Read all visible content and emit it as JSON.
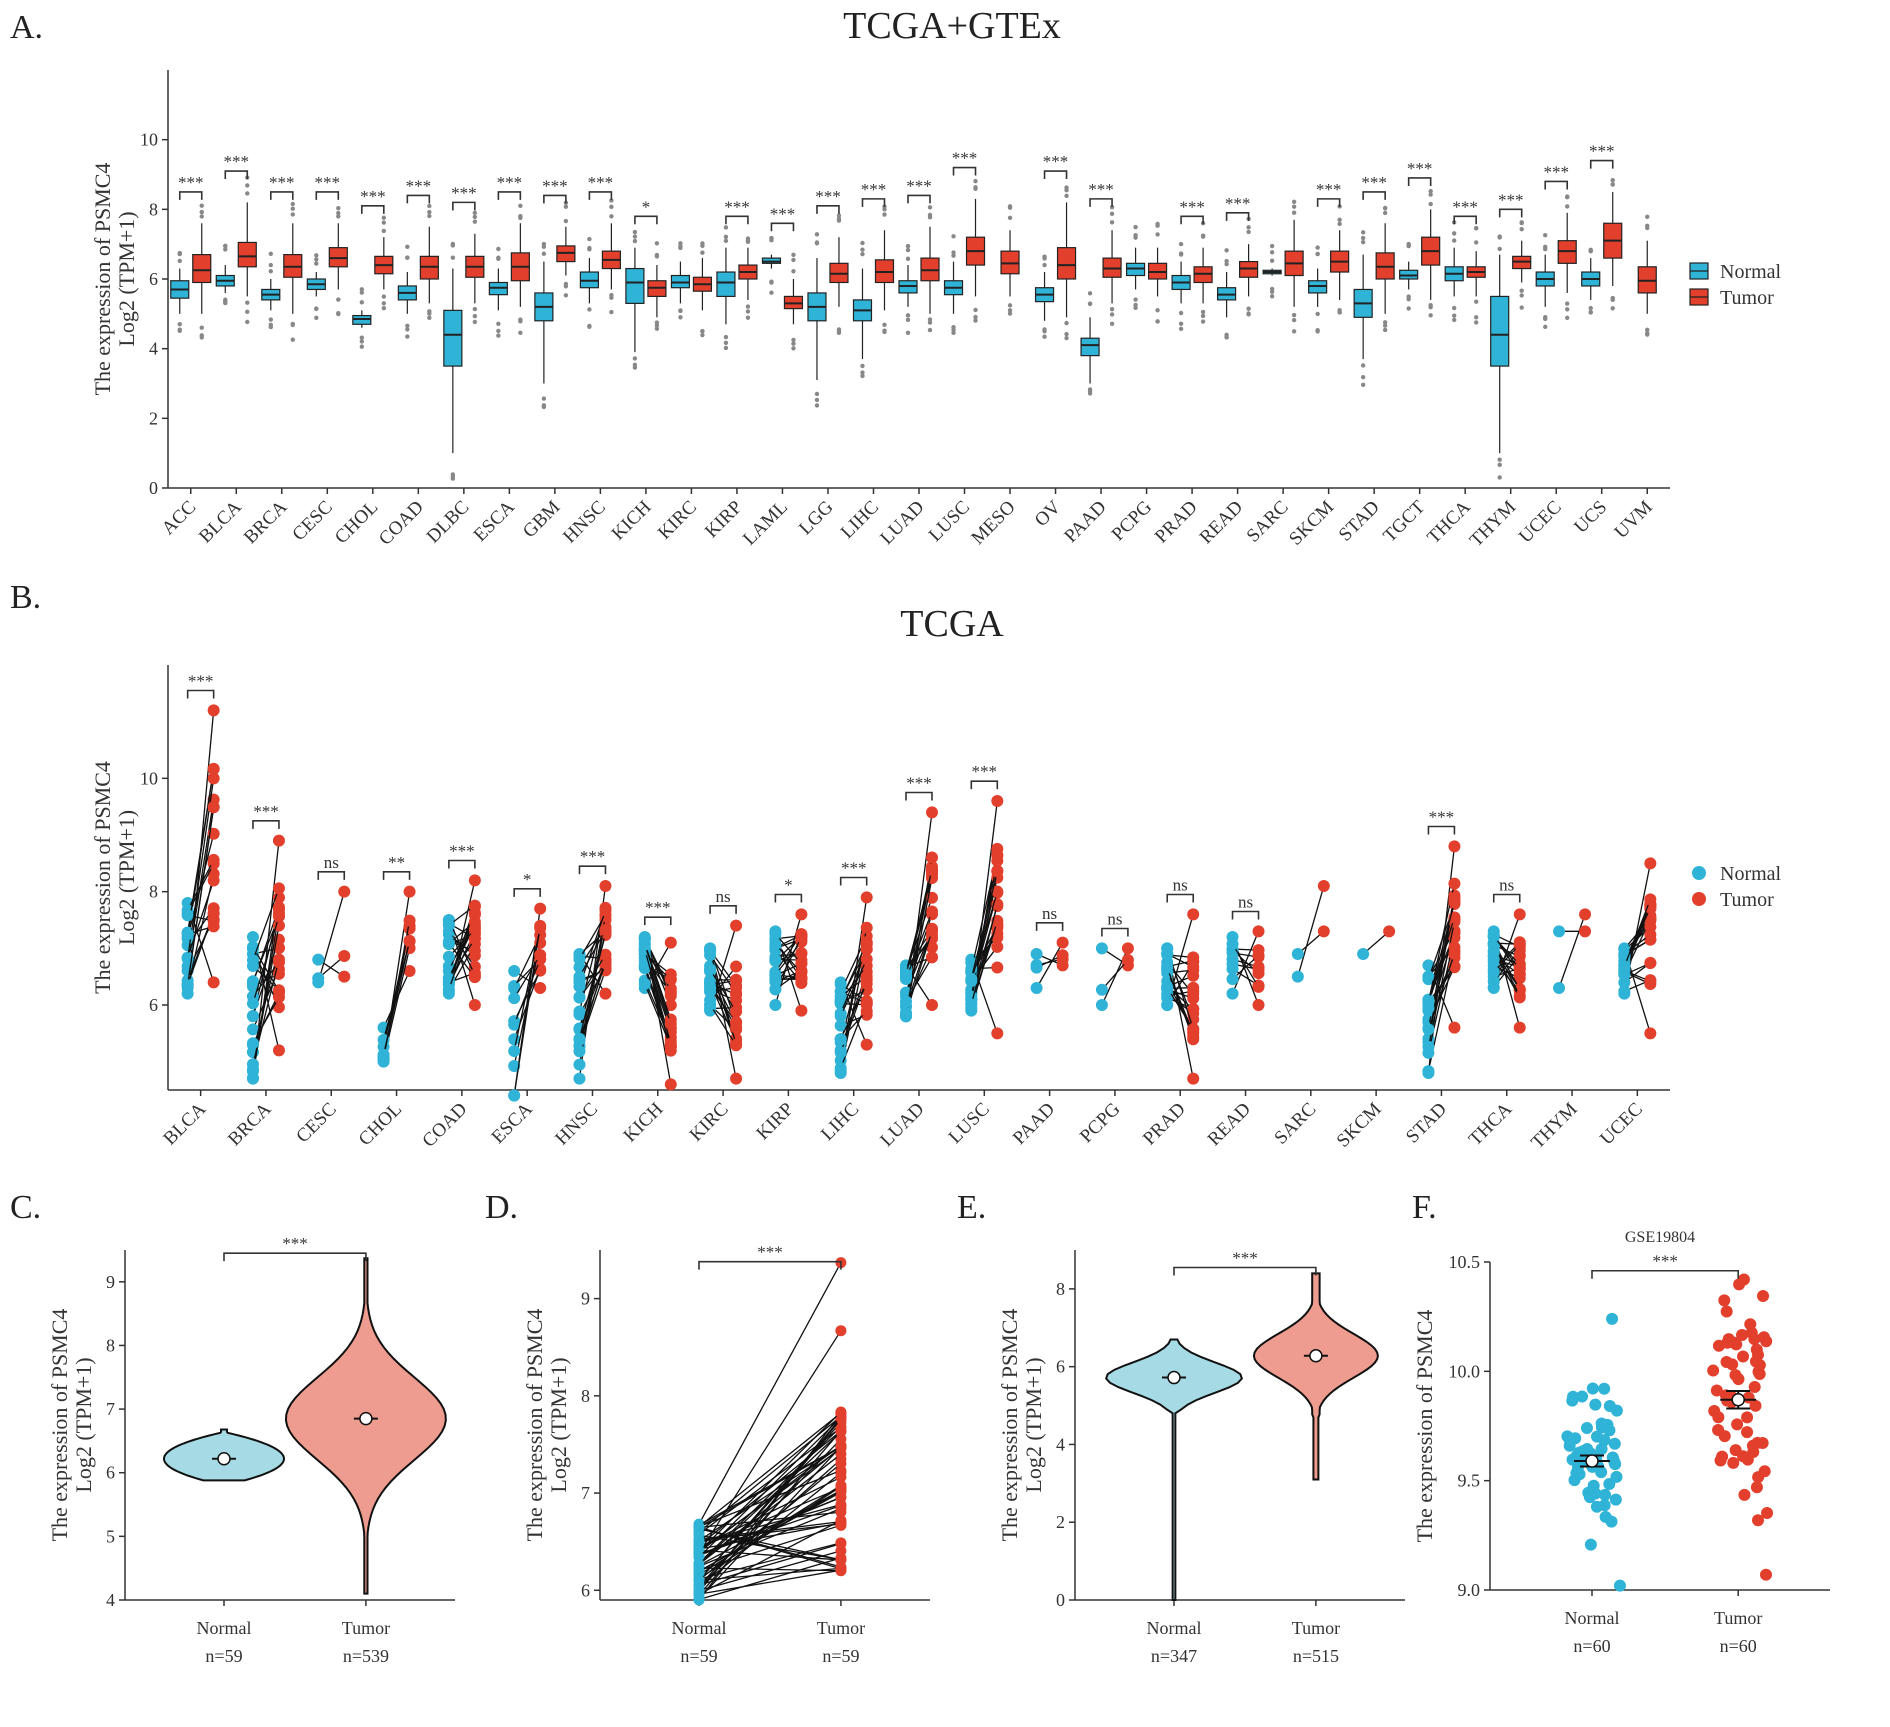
{
  "colors": {
    "normal": "#2fb3d6",
    "tumor": "#e2402c",
    "normal_violin": "#a6dbe6",
    "tumor_violin": "#ef9c90"
  },
  "legend": {
    "normal": "Normal",
    "tumor": "Tumor"
  },
  "chart_data": [
    {
      "panel": "A.",
      "type": "box",
      "title": "TCGA+GTEx",
      "ylabel_line1": "The expression  of PSMC4",
      "ylabel_line2": "Log2 (TPM+1)",
      "ylim": [
        0,
        12
      ],
      "yticks": [
        0,
        2,
        4,
        6,
        8,
        10
      ],
      "legend_position": "right",
      "categories": [
        "ACC",
        "BLCA",
        "BRCA",
        "CESC",
        "CHOL",
        "COAD",
        "DLBC",
        "ESCA",
        "GBM",
        "HNSC",
        "KICH",
        "KIRC",
        "KIRP",
        "LAML",
        "LGG",
        "LIHC",
        "LUAD",
        "LUSC",
        "MESO",
        "OV",
        "PAAD",
        "PCPG",
        "PRAD",
        "READ",
        "SARC",
        "SKCM",
        "STAD",
        "TGCT",
        "THCA",
        "THYM",
        "UCEC",
        "UCS",
        "UVM"
      ],
      "significance": [
        "***",
        "***",
        "***",
        "***",
        "***",
        "***",
        "***",
        "***",
        "***",
        "***",
        "*",
        "",
        "***",
        "***",
        "***",
        "***",
        "***",
        "***",
        "",
        "***",
        "***",
        "",
        "***",
        "***",
        "",
        "***",
        "***",
        "***",
        "***",
        "***",
        "***",
        "***",
        ""
      ],
      "normal_box": [
        [
          5.45,
          5.7,
          5.95,
          5.0,
          6.3
        ],
        [
          5.8,
          5.95,
          6.1,
          5.6,
          6.4
        ],
        [
          5.4,
          5.55,
          5.7,
          5.1,
          6.0
        ],
        [
          5.7,
          5.85,
          6.0,
          5.5,
          6.2
        ],
        [
          4.7,
          4.85,
          4.95,
          4.6,
          5.1
        ],
        [
          5.4,
          5.6,
          5.8,
          5.0,
          6.2
        ],
        [
          3.5,
          4.4,
          5.1,
          1.0,
          6.3
        ],
        [
          5.55,
          5.75,
          5.9,
          5.1,
          6.3
        ],
        [
          4.8,
          5.2,
          5.6,
          3.0,
          6.5
        ],
        [
          5.75,
          5.95,
          6.2,
          5.3,
          6.6
        ],
        [
          5.3,
          5.9,
          6.3,
          3.9,
          6.9
        ],
        [
          5.75,
          5.9,
          6.1,
          5.3,
          6.5
        ],
        [
          5.5,
          5.9,
          6.2,
          4.7,
          6.9
        ],
        [
          6.45,
          6.5,
          6.6,
          6.3,
          6.7
        ],
        [
          4.8,
          5.2,
          5.6,
          3.1,
          6.6
        ],
        [
          4.8,
          5.1,
          5.4,
          3.7,
          6.3
        ],
        [
          5.6,
          5.8,
          5.95,
          5.2,
          6.4
        ],
        [
          5.55,
          5.75,
          5.95,
          5.0,
          6.5
        ],
        null,
        [
          5.35,
          5.55,
          5.75,
          4.8,
          6.2
        ],
        [
          3.8,
          4.1,
          4.3,
          3.0,
          4.9
        ],
        [
          6.1,
          6.3,
          6.45,
          5.7,
          6.9
        ],
        [
          5.7,
          5.9,
          6.1,
          5.3,
          6.5
        ],
        [
          5.4,
          5.55,
          5.75,
          4.9,
          6.2
        ],
        [
          6.15,
          6.2,
          6.25,
          6.1,
          6.3
        ],
        [
          5.6,
          5.8,
          5.95,
          5.2,
          6.3
        ],
        [
          4.9,
          5.3,
          5.7,
          3.7,
          6.7
        ],
        [
          6.0,
          6.1,
          6.25,
          5.7,
          6.5
        ],
        [
          5.95,
          6.15,
          6.35,
          5.5,
          6.9
        ],
        [
          3.5,
          4.4,
          5.5,
          1.0,
          6.7
        ],
        [
          5.8,
          6.0,
          6.2,
          5.2,
          6.7
        ],
        [
          5.8,
          6.0,
          6.2,
          5.4,
          6.6
        ],
        null
      ],
      "tumor_box": [
        [
          5.9,
          6.25,
          6.7,
          5.0,
          7.6
        ],
        [
          6.35,
          6.65,
          7.05,
          5.5,
          8.2
        ],
        [
          6.05,
          6.35,
          6.7,
          5.0,
          7.6
        ],
        [
          6.35,
          6.6,
          6.9,
          5.7,
          7.6
        ],
        [
          6.15,
          6.4,
          6.65,
          5.7,
          7.2
        ],
        [
          6.0,
          6.35,
          6.65,
          5.3,
          7.5
        ],
        [
          6.05,
          6.35,
          6.65,
          5.3,
          7.3
        ],
        [
          5.95,
          6.35,
          6.75,
          5.2,
          7.6
        ],
        [
          6.5,
          6.75,
          6.95,
          6.1,
          7.5
        ],
        [
          6.3,
          6.55,
          6.8,
          5.7,
          7.6
        ],
        [
          5.5,
          5.75,
          5.95,
          4.9,
          6.4
        ],
        [
          5.65,
          5.85,
          6.05,
          5.1,
          6.6
        ],
        [
          6.0,
          6.2,
          6.4,
          5.4,
          6.9
        ],
        [
          5.15,
          5.3,
          5.5,
          4.7,
          6.0
        ],
        [
          5.9,
          6.15,
          6.45,
          5.2,
          7.2
        ],
        [
          5.9,
          6.2,
          6.55,
          5.1,
          7.4
        ],
        [
          5.95,
          6.25,
          6.6,
          5.0,
          7.5
        ],
        [
          6.4,
          6.8,
          7.2,
          5.5,
          8.3
        ],
        [
          6.15,
          6.45,
          6.8,
          5.5,
          7.4
        ],
        [
          6.0,
          6.4,
          6.9,
          4.9,
          8.2
        ],
        [
          6.05,
          6.3,
          6.6,
          5.3,
          7.4
        ],
        [
          6.0,
          6.2,
          6.45,
          5.5,
          6.9
        ],
        [
          5.9,
          6.15,
          6.35,
          5.3,
          6.9
        ],
        [
          6.05,
          6.3,
          6.5,
          5.5,
          7.0
        ],
        [
          6.1,
          6.45,
          6.8,
          5.2,
          7.7
        ],
        [
          6.2,
          6.5,
          6.8,
          5.4,
          7.4
        ],
        [
          6.0,
          6.35,
          6.75,
          5.0,
          7.6
        ],
        [
          6.4,
          6.8,
          7.2,
          5.4,
          8.0
        ],
        [
          6.05,
          6.2,
          6.35,
          5.5,
          6.8
        ],
        [
          6.3,
          6.5,
          6.65,
          5.9,
          7.1
        ],
        [
          6.45,
          6.8,
          7.1,
          5.6,
          7.9
        ],
        [
          6.6,
          7.1,
          7.6,
          5.8,
          8.5
        ],
        [
          5.6,
          5.95,
          6.35,
          5.0,
          7.1
        ]
      ]
    },
    {
      "panel": "B.",
      "type": "paired-dot",
      "title": "TCGA",
      "ylabel_line1": "The expression  of PSMC4",
      "ylabel_line2": "Log2 (TPM+1)",
      "ylim": [
        4.5,
        12
      ],
      "yticks": [
        6,
        8,
        10
      ],
      "legend_position": "right",
      "categories": [
        "BLCA",
        "BRCA",
        "CESC",
        "CHOL",
        "COAD",
        "ESCA",
        "HNSC",
        "KICH",
        "KIRC",
        "KIRP",
        "LIHC",
        "LUAD",
        "LUSC",
        "PAAD",
        "PCPG",
        "PRAD",
        "READ",
        "SARC",
        "SKCM",
        "STAD",
        "THCA",
        "THYM",
        "UCEC"
      ],
      "significance": [
        "***",
        "***",
        "ns",
        "**",
        "***",
        "*",
        "***",
        "***",
        "ns",
        "*",
        "***",
        "***",
        "***",
        "ns",
        "ns",
        "ns",
        "ns",
        "",
        "",
        "***",
        "ns",
        "",
        ""
      ],
      "normal_range": [
        [
          6.2,
          7.8
        ],
        [
          4.7,
          7.2
        ],
        [
          6.4,
          6.8
        ],
        [
          5.0,
          5.6
        ],
        [
          6.2,
          7.5
        ],
        [
          4.4,
          6.6
        ],
        [
          4.7,
          6.9
        ],
        [
          6.3,
          7.2
        ],
        [
          5.9,
          7.0
        ],
        [
          6.0,
          7.3
        ],
        [
          4.8,
          6.4
        ],
        [
          5.8,
          6.7
        ],
        [
          5.9,
          6.8
        ],
        [
          6.3,
          6.9
        ],
        [
          6.0,
          7.0
        ],
        [
          6.0,
          7.0
        ],
        [
          6.2,
          7.2
        ],
        [
          6.5,
          6.9
        ],
        [
          6.9,
          6.9
        ],
        [
          4.8,
          6.7
        ],
        [
          6.3,
          7.3
        ],
        [
          6.3,
          7.3
        ],
        [
          6.2,
          7.0
        ]
      ],
      "tumor_range": [
        [
          6.4,
          11.2
        ],
        [
          5.2,
          8.9
        ],
        [
          6.5,
          8.0
        ],
        [
          6.6,
          8.0
        ],
        [
          6.0,
          8.2
        ],
        [
          6.3,
          7.7
        ],
        [
          6.2,
          8.1
        ],
        [
          4.6,
          7.1
        ],
        [
          4.7,
          7.4
        ],
        [
          5.9,
          7.6
        ],
        [
          5.3,
          7.9
        ],
        [
          6.0,
          9.4
        ],
        [
          5.5,
          9.6
        ],
        [
          6.7,
          7.1
        ],
        [
          6.7,
          7.0
        ],
        [
          4.7,
          7.6
        ],
        [
          6.0,
          7.3
        ],
        [
          7.3,
          8.1
        ],
        [
          7.3,
          7.3
        ],
        [
          5.6,
          8.8
        ],
        [
          5.6,
          7.6
        ],
        [
          7.3,
          7.6
        ],
        [
          5.5,
          8.5
        ]
      ],
      "pair_counts": [
        19,
        110,
        3,
        9,
        41,
        11,
        43,
        25,
        72,
        32,
        50,
        59,
        51,
        4,
        3,
        52,
        10,
        2,
        1,
        32,
        59,
        2,
        23
      ]
    },
    {
      "panel": "C.",
      "type": "violin",
      "title": "",
      "ylabel_line1": "The expression  of PSMC4",
      "ylabel_line2": "Log2 (TPM+1)",
      "ylim": [
        4,
        9.5
      ],
      "yticks": [
        4,
        5,
        6,
        7,
        8,
        9
      ],
      "significance": "***",
      "groups": [
        {
          "name": "Normal",
          "n": "n=59",
          "median": 6.22,
          "min": 5.88,
          "max": 6.68
        },
        {
          "name": "Tumor",
          "n": "n=539",
          "median": 6.85,
          "min": 4.1,
          "max": 9.37
        }
      ]
    },
    {
      "panel": "D.",
      "type": "paired-line",
      "title": "",
      "ylabel_line1": "The expression  of PSMC4",
      "ylabel_line2": "Log2 (TPM+1)",
      "ylim": [
        5.9,
        9.5
      ],
      "yticks": [
        6,
        7,
        8,
        9
      ],
      "significance": "***",
      "groups": [
        {
          "name": "Normal",
          "n": "n=59",
          "min": 5.9,
          "max": 6.68
        },
        {
          "name": "Tumor",
          "n": "n=59",
          "min": 6.2,
          "max": 9.37
        }
      ]
    },
    {
      "panel": "E.",
      "type": "violin",
      "title": "",
      "ylabel_line1": "The expression  of PSMC4",
      "ylabel_line2": "Log2 (TPM+1)",
      "ylim": [
        0,
        9
      ],
      "yticks": [
        0,
        2,
        4,
        6,
        8
      ],
      "significance": "***",
      "groups": [
        {
          "name": "Normal",
          "n": "n=347",
          "median": 5.72,
          "min": 0.0,
          "max": 6.7
        },
        {
          "name": "Tumor",
          "n": "n=515",
          "median": 6.28,
          "min": 3.1,
          "max": 8.4
        }
      ]
    },
    {
      "panel": "F.",
      "type": "scatter",
      "title": "GSE19804",
      "ylabel_line1": "The expression of PSMC4",
      "ylabel_line2": "",
      "ylim": [
        9.0,
        10.5
      ],
      "yticks": [
        9.0,
        9.5,
        10.0,
        10.5
      ],
      "significance": "***",
      "groups": [
        {
          "name": "Normal",
          "n": "n=60",
          "mean": 9.59,
          "min": 9.02,
          "max": 10.24
        },
        {
          "name": "Tumor",
          "n": "n=60",
          "mean": 9.87,
          "min": 9.07,
          "max": 10.42
        }
      ]
    }
  ]
}
